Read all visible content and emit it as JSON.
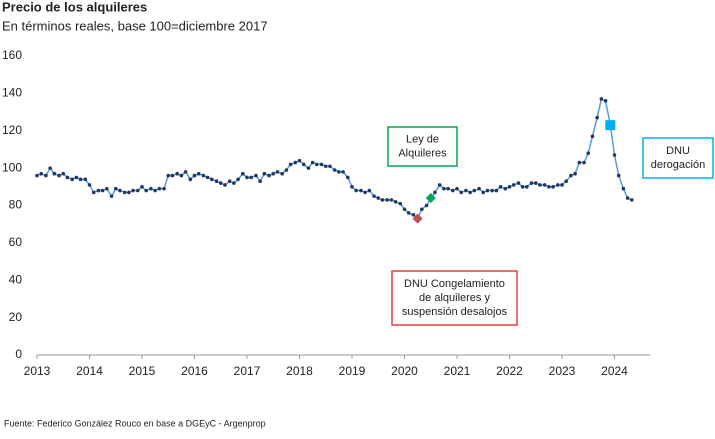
{
  "chart_data": {
    "type": "line",
    "title": "Precio de los alquileres",
    "subtitle": "En términos reales, base 100=diciembre 2017",
    "source": "Fuente: Federico González Rouco en base a DGEyC - Argenprop",
    "x": [
      2013,
      2013.08,
      2013.17,
      2013.25,
      2013.33,
      2013.42,
      2013.5,
      2013.58,
      2013.67,
      2013.75,
      2013.83,
      2013.92,
      2014,
      2014.08,
      2014.17,
      2014.25,
      2014.33,
      2014.42,
      2014.5,
      2014.58,
      2014.67,
      2014.75,
      2014.83,
      2014.92,
      2015,
      2015.08,
      2015.17,
      2015.25,
      2015.33,
      2015.42,
      2015.5,
      2015.58,
      2015.67,
      2015.75,
      2015.83,
      2015.92,
      2016,
      2016.08,
      2016.17,
      2016.25,
      2016.33,
      2016.42,
      2016.5,
      2016.58,
      2016.67,
      2016.75,
      2016.83,
      2016.92,
      2017,
      2017.08,
      2017.17,
      2017.25,
      2017.33,
      2017.42,
      2017.5,
      2017.58,
      2017.67,
      2017.75,
      2017.83,
      2017.92,
      2018,
      2018.08,
      2018.17,
      2018.25,
      2018.33,
      2018.42,
      2018.5,
      2018.58,
      2018.67,
      2018.75,
      2018.83,
      2018.92,
      2019,
      2019.08,
      2019.17,
      2019.25,
      2019.33,
      2019.42,
      2019.5,
      2019.58,
      2019.67,
      2019.75,
      2019.83,
      2019.92,
      2020,
      2020.08,
      2020.17,
      2020.25,
      2020.33,
      2020.42,
      2020.5,
      2020.58,
      2020.67,
      2020.75,
      2020.83,
      2020.92,
      2021,
      2021.08,
      2021.17,
      2021.25,
      2021.33,
      2021.42,
      2021.5,
      2021.58,
      2021.67,
      2021.75,
      2021.83,
      2021.92,
      2022,
      2022.08,
      2022.17,
      2022.25,
      2022.33,
      2022.42,
      2022.5,
      2022.58,
      2022.67,
      2022.75,
      2022.83,
      2022.92,
      2023,
      2023.08,
      2023.17,
      2023.25,
      2023.33,
      2023.42,
      2023.5,
      2023.58,
      2023.67,
      2023.75,
      2023.83,
      2023.92,
      2024,
      2024.08,
      2024.17,
      2024.25,
      2024.33
    ],
    "series": [
      {
        "color": "#1f3864",
        "values": [
          96,
          97,
          96,
          100,
          97,
          96,
          97,
          95,
          94,
          95,
          94,
          94,
          91,
          87,
          88,
          88,
          89,
          85,
          89,
          88,
          87,
          87,
          88,
          88,
          90,
          88,
          89,
          88,
          89,
          89,
          96,
          96,
          97,
          96,
          98,
          94,
          96,
          97,
          96,
          95,
          94,
          93,
          92,
          91,
          93,
          92,
          94,
          97,
          95,
          95,
          96,
          93,
          97,
          96,
          97,
          98,
          97,
          99,
          102,
          103,
          104,
          102,
          100,
          103,
          102,
          102,
          101,
          101,
          99,
          98,
          98,
          95,
          90,
          88,
          88,
          87,
          88,
          85,
          84,
          83,
          83,
          83,
          82,
          81,
          78,
          76,
          75,
          73,
          78,
          80,
          84,
          87,
          91,
          89,
          89,
          88,
          89,
          87,
          88,
          87,
          88,
          89,
          87,
          88,
          88,
          88,
          90,
          89,
          90,
          91,
          92,
          90,
          90,
          92,
          92,
          91,
          91,
          90,
          90,
          91,
          91,
          93,
          96,
          97,
          103,
          103,
          108,
          117,
          127,
          137,
          136,
          123,
          107,
          96,
          89,
          84,
          83
        ]
      }
    ],
    "highlights": [
      {
        "x": 2020.25,
        "value": 73,
        "color": "#c0504d",
        "shape": "diamond"
      },
      {
        "x": 2020.5,
        "value": 84,
        "color": "#00a651",
        "shape": "diamond"
      },
      {
        "x": 2023.92,
        "value": 123,
        "color": "#00b0f0",
        "shape": "square"
      }
    ],
    "annotations": [
      {
        "lines": [
          "Ley de",
          "Alquileres"
        ],
        "color": "#00a651"
      },
      {
        "lines": [
          "DNU Congelamiento",
          "de alquileres y",
          "suspensión desalojos"
        ],
        "color": "#e04040"
      },
      {
        "lines": [
          "DNU",
          "derogación"
        ],
        "color": "#00b0f0"
      }
    ],
    "xlim": [
      2013,
      2024.6
    ],
    "xticks": [
      2013,
      2014,
      2015,
      2016,
      2017,
      2018,
      2019,
      2020,
      2021,
      2022,
      2023,
      2024
    ],
    "ylim": [
      0,
      160
    ],
    "yticks": [
      0,
      20,
      40,
      60,
      80,
      100,
      120,
      140,
      160
    ]
  }
}
